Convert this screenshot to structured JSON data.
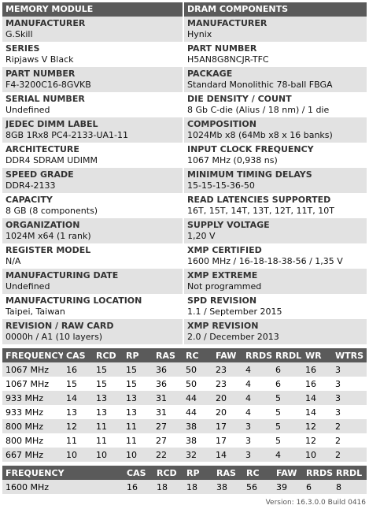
{
  "header": {
    "left": "MEMORY MODULE",
    "right": "DRAM COMPONENTS"
  },
  "rows": [
    {
      "l_label": "MANUFACTURER",
      "l_value": "G.Skill",
      "r_label": "MANUFACTURER",
      "r_value": "Hynix"
    },
    {
      "l_label": "SERIES",
      "l_value": "Ripjaws V Black",
      "r_label": "PART NUMBER",
      "r_value": "H5AN8G8NCJR-TFC"
    },
    {
      "l_label": "PART NUMBER",
      "l_value": "F4-3200C16-8GVKB",
      "r_label": "PACKAGE",
      "r_value": "Standard Monolithic 78-ball FBGA"
    },
    {
      "l_label": "SERIAL NUMBER",
      "l_value": "Undefined",
      "r_label": "DIE DENSITY / COUNT",
      "r_value": "8 Gb C-die (Alius / 18 nm) / 1 die"
    },
    {
      "l_label": "JEDEC DIMM LABEL",
      "l_value": "8GB 1Rx8 PC4-2133-UA1-11",
      "r_label": "COMPOSITION",
      "r_value": "1024Mb x8 (64Mb x8 x 16 banks)"
    },
    {
      "l_label": "ARCHITECTURE",
      "l_value": "DDR4 SDRAM UDIMM",
      "r_label": "INPUT CLOCK FREQUENCY",
      "r_value": "1067 MHz (0,938 ns)"
    },
    {
      "l_label": "SPEED GRADE",
      "l_value": "DDR4-2133",
      "r_label": "MINIMUM TIMING DELAYS",
      "r_value": "15-15-15-36-50"
    },
    {
      "l_label": "CAPACITY",
      "l_value": "8 GB (8 components)",
      "r_label": "READ LATENCIES SUPPORTED",
      "r_value": "16T, 15T, 14T, 13T, 12T, 11T, 10T"
    },
    {
      "l_label": "ORGANIZATION",
      "l_value": "1024M x64 (1 rank)",
      "r_label": "SUPPLY VOLTAGE",
      "r_value": "1,20 V"
    },
    {
      "l_label": "REGISTER MODEL",
      "l_value": "N/A",
      "r_label": "XMP CERTIFIED",
      "r_value": "1600 MHz / 16-18-18-38-56 / 1,35 V"
    },
    {
      "l_label": "MANUFACTURING DATE",
      "l_value": "Undefined",
      "r_label": "XMP EXTREME",
      "r_value": "Not programmed"
    },
    {
      "l_label": "MANUFACTURING LOCATION",
      "l_value": "Taipei, Taiwan",
      "r_label": "SPD REVISION",
      "r_value": "1.1 / September 2015"
    },
    {
      "l_label": "REVISION / RAW CARD",
      "l_value": "0000h / A1 (10 layers)",
      "r_label": "XMP REVISION",
      "r_value": "2.0 / December 2013"
    }
  ],
  "jedec_table": {
    "headers": [
      "FREQUENCY",
      "CAS",
      "RCD",
      "RP",
      "RAS",
      "RC",
      "FAW",
      "RRDS",
      "RRDL",
      "WR",
      "WTRS"
    ],
    "rows": [
      [
        "1067 MHz",
        "16",
        "15",
        "15",
        "36",
        "50",
        "23",
        "4",
        "6",
        "16",
        "3"
      ],
      [
        "1067 MHz",
        "15",
        "15",
        "15",
        "36",
        "50",
        "23",
        "4",
        "6",
        "16",
        "3"
      ],
      [
        "933 MHz",
        "14",
        "13",
        "13",
        "31",
        "44",
        "20",
        "4",
        "5",
        "14",
        "3"
      ],
      [
        "933 MHz",
        "13",
        "13",
        "13",
        "31",
        "44",
        "20",
        "4",
        "5",
        "14",
        "3"
      ],
      [
        "800 MHz",
        "12",
        "11",
        "11",
        "27",
        "38",
        "17",
        "3",
        "5",
        "12",
        "2"
      ],
      [
        "800 MHz",
        "11",
        "11",
        "11",
        "27",
        "38",
        "17",
        "3",
        "5",
        "12",
        "2"
      ],
      [
        "667 MHz",
        "10",
        "10",
        "10",
        "22",
        "32",
        "14",
        "3",
        "4",
        "10",
        "2"
      ]
    ]
  },
  "xmp_table": {
    "headers": [
      "FREQUENCY",
      "CAS",
      "RCD",
      "RP",
      "RAS",
      "RC",
      "FAW",
      "RRDS",
      "RRDL"
    ],
    "rows": [
      [
        "1600 MHz",
        "16",
        "18",
        "18",
        "38",
        "56",
        "39",
        "6",
        "8"
      ]
    ]
  },
  "footer": {
    "version": "Version: 16.3.0.0 Build 0416"
  }
}
